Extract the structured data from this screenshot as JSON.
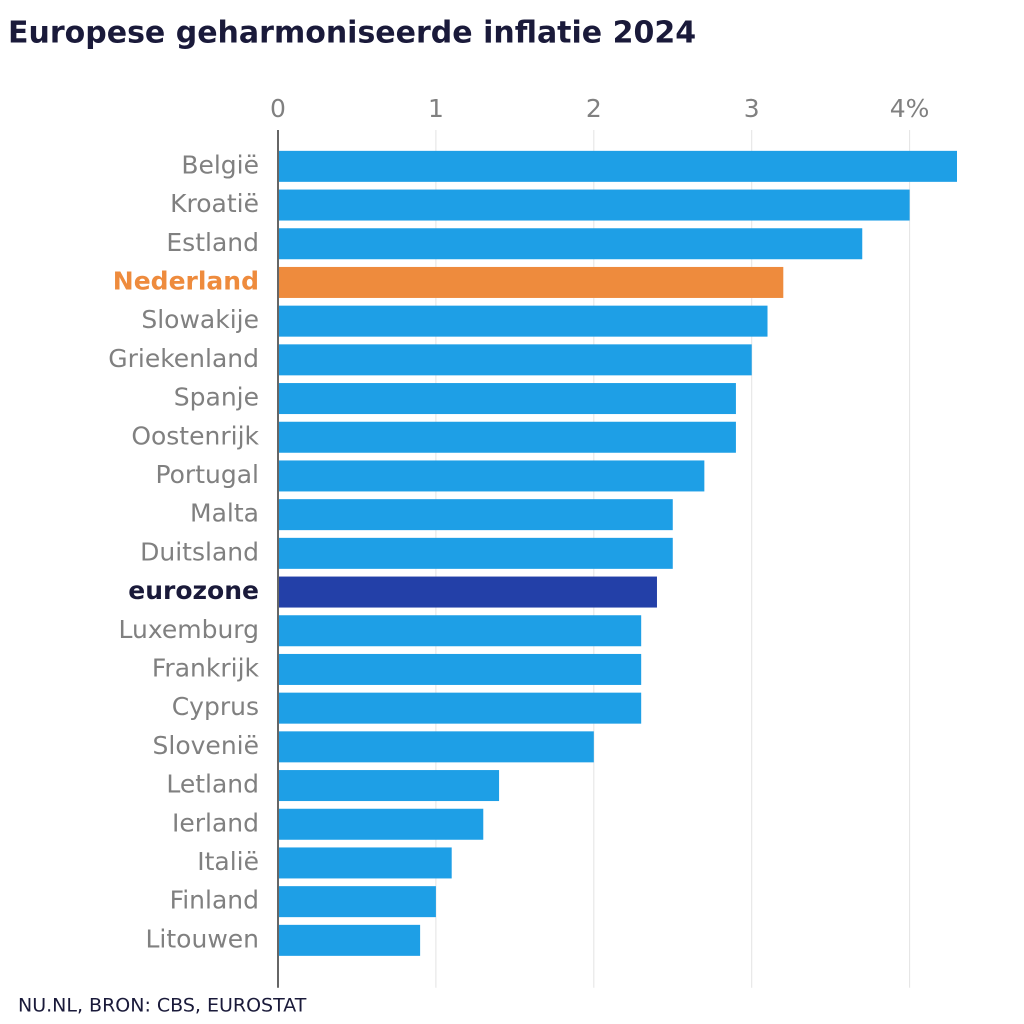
{
  "chart_data": {
    "type": "hbar",
    "title": "Europese geharmoniseerde inflatie 2024",
    "source": "NU.NL, BRON: CBS, EUROSTAT",
    "categories": [
      "België",
      "Kroatië",
      "Estland",
      "Nederland",
      "Slowakije",
      "Griekenland",
      "Spanje",
      "Oostenrijk",
      "Portugal",
      "Malta",
      "Duitsland",
      "eurozone",
      "Luxemburg",
      "Frankrijk",
      "Cyprus",
      "Slovenië",
      "Letland",
      "Ierland",
      "Italië",
      "Finland",
      "Litouwen"
    ],
    "values": [
      4.3,
      4.0,
      3.7,
      3.2,
      3.1,
      3.0,
      2.9,
      2.9,
      2.7,
      2.5,
      2.5,
      2.4,
      2.3,
      2.3,
      2.3,
      2.0,
      1.4,
      1.3,
      1.1,
      1.0,
      0.9
    ],
    "colors": [
      "#1e9fe6",
      "#1e9fe6",
      "#1e9fe6",
      "#ee8b3d",
      "#1e9fe6",
      "#1e9fe6",
      "#1e9fe6",
      "#1e9fe6",
      "#1e9fe6",
      "#1e9fe6",
      "#1e9fe6",
      "#2340a8",
      "#1e9fe6",
      "#1e9fe6",
      "#1e9fe6",
      "#1e9fe6",
      "#1e9fe6",
      "#1e9fe6",
      "#1e9fe6",
      "#1e9fe6",
      "#1e9fe6"
    ],
    "label_colors": [
      "#808080",
      "#808080",
      "#808080",
      "#ee8b3d",
      "#808080",
      "#808080",
      "#808080",
      "#808080",
      "#808080",
      "#808080",
      "#808080",
      "#1a1a3a",
      "#808080",
      "#808080",
      "#808080",
      "#808080",
      "#808080",
      "#808080",
      "#808080",
      "#808080",
      "#808080"
    ],
    "label_bold": [
      false,
      false,
      false,
      true,
      false,
      false,
      false,
      false,
      false,
      false,
      false,
      true,
      false,
      false,
      false,
      false,
      false,
      false,
      false,
      false,
      false
    ],
    "xlim": [
      0,
      4.3
    ],
    "xticks": [
      0,
      1,
      2,
      3,
      {
        "value": 4,
        "label": "4%"
      }
    ],
    "grid": true
  }
}
